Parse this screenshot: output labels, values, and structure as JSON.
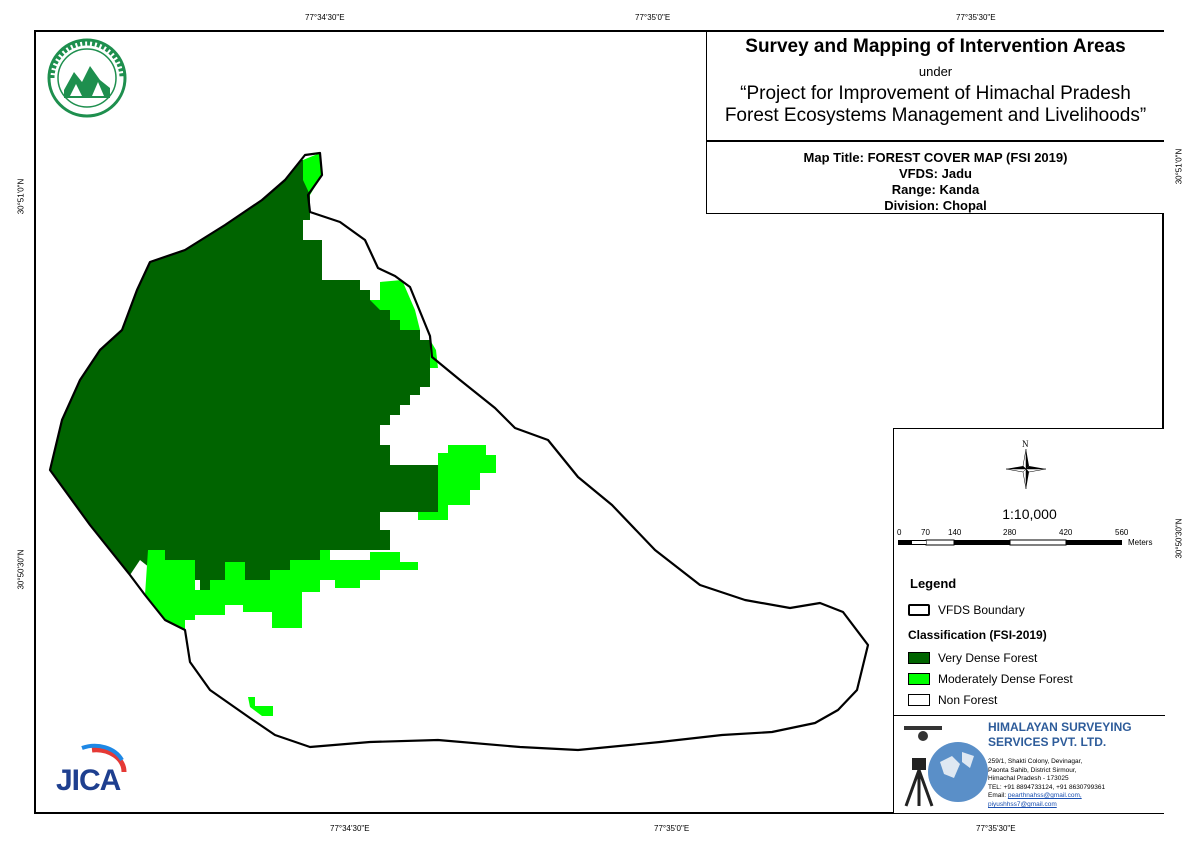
{
  "coordinates": {
    "top": [
      "77°34'30\"E",
      "77°35'0\"E",
      "77°35'30\"E"
    ],
    "bottom": [
      "77°34'30\"E",
      "77°35'0\"E",
      "77°35'30\"E"
    ],
    "left": [
      "30°51'0\"N",
      "30°50'30\"N"
    ],
    "right": [
      "30°51'0\"N",
      "30°50'30\"N"
    ]
  },
  "title_block": {
    "heading": "Survey and Mapping of Intervention Areas",
    "under": "under",
    "project_line1": "“Project for Improvement of Himachal Pradesh",
    "project_line2": "Forest Ecosystems Management and Livelihoods”"
  },
  "map_info": {
    "map_title": "Map Title: FOREST COVER MAP (FSI 2019)",
    "vfds": "VFDS: Jadu",
    "range": "Range: Kanda",
    "division": "Division: Chopal"
  },
  "north_arrow": {
    "label": "N"
  },
  "scale": {
    "ratio": "1:10,000",
    "ticks": [
      "0",
      "70",
      "140",
      "280",
      "420",
      "560"
    ],
    "tick_values": [
      0,
      70,
      140,
      280,
      420,
      560
    ],
    "unit": "Meters"
  },
  "legend": {
    "title": "Legend",
    "boundary_label": "VFDS Boundary",
    "classification_title": "Classification (FSI-2019)",
    "items": [
      {
        "label": "Very Dense Forest",
        "color": "#006400"
      },
      {
        "label": "Moderately Dense Forest",
        "color": "#00FF00"
      },
      {
        "label": "Non Forest",
        "color": "#FFFFFF"
      }
    ]
  },
  "company": {
    "name_line1": "HIMALAYAN SURVEYING",
    "name_line2": "SERVICES PVT. LTD.",
    "address1": "259/1, Shakti Colony, Devinagar,",
    "address2": "Paonta Sahib, District Sirmour,",
    "address3": "Himachal Pradesh - 173025",
    "tel": "TEL: +91 8894733124, +91 8630799361",
    "email_prefix": "Email:",
    "email1": "pearthnahss@gmail.com,",
    "email2": "piyushhss7@gmail.com",
    "color": "#2E5C9A"
  },
  "logos": {
    "jica": "JICA",
    "seal_top": "वन ही जल, पर्यावरण बचाओ",
    "seal_bottom": "वन विभाग हिमाचल प्रदेश"
  },
  "colors": {
    "very_dense": "#006400",
    "moderately_dense": "#00FF00",
    "seal_green": "#1E8F4E"
  }
}
